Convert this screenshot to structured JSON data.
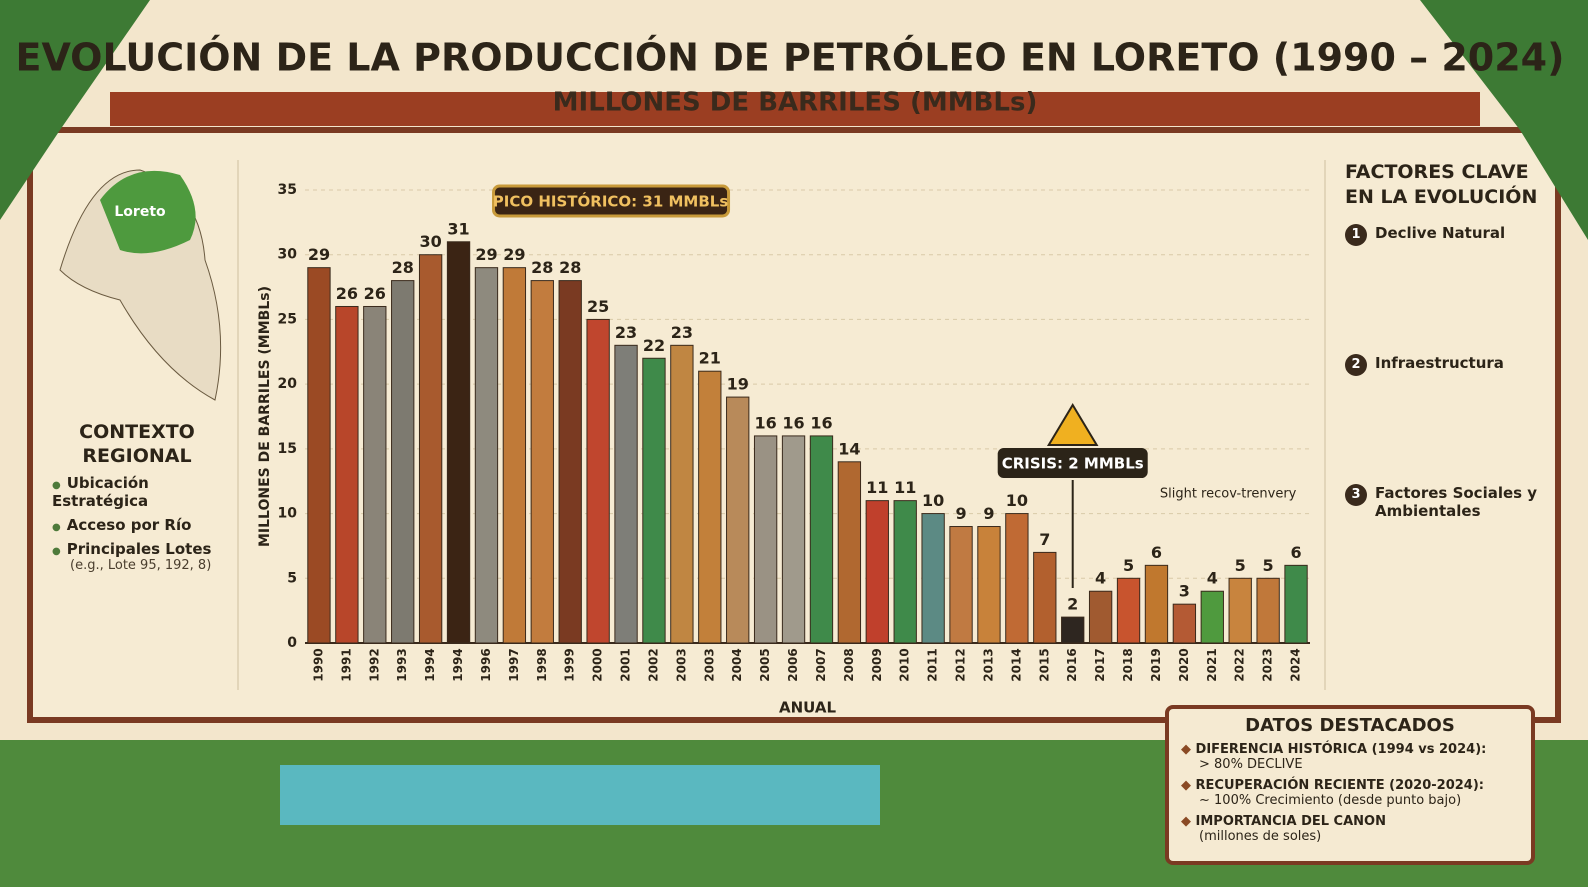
{
  "title": "EVOLUCIÓN DE LA PRODUCCIÓN DE PETRÓLEO EN LORETO (1990 – 2024)",
  "subtitle": "MILLONES DE BARRILES (MMBLs)",
  "left_panel": {
    "map_label": "Loreto",
    "title": "CONTEXTO REGIONAL",
    "items": [
      "Ubicación Estratégica",
      "Acceso por Río",
      "Principales Lotes"
    ],
    "note": "(e.g., Lote 95, 192, 8)"
  },
  "right_panel": {
    "title": "FACTORES CLAVE EN LA EVOLUCIÓN",
    "items": [
      {
        "number": "1",
        "text": "Declive Natural"
      },
      {
        "number": "2",
        "text": "Infraestructura"
      },
      {
        "number": "3",
        "text": "Factores Sociales y Ambientales"
      }
    ]
  },
  "highlights": {
    "title": "DATOS DESTACADOS",
    "items": [
      {
        "heading": "DIFERENCIA HISTÓRICA (1994 vs 2024):",
        "detail": "> 80% DECLIVE"
      },
      {
        "heading": "RECUPERACIÓN RECIENTE (2020-2024):",
        "detail": "~ 100% Crecimiento (desde punto bajo)"
      },
      {
        "heading": "IMPORTANCIA DEL CANON",
        "detail": "(millones de soles)"
      }
    ]
  },
  "chart_data": {
    "type": "bar",
    "y_label": "MILLONES DE BARRILES (MMBLs)",
    "x_label": "ANUAL",
    "categories": [
      "1990",
      "1991",
      "1992",
      "1993",
      "1994",
      "1994",
      "1996",
      "1997",
      "1998",
      "1999",
      "2000",
      "2001",
      "2002",
      "2003",
      "2003",
      "2004",
      "2005",
      "2006",
      "2007",
      "2008",
      "2009",
      "2010",
      "2011",
      "2012",
      "2013",
      "2014",
      "2015",
      "2016",
      "2017",
      "2018",
      "2019",
      "2020",
      "2021",
      "2022",
      "2023",
      "2024"
    ],
    "values": [
      29,
      26,
      26,
      28,
      30,
      31,
      29,
      29,
      28,
      28,
      25,
      23,
      22,
      23,
      21,
      19,
      16,
      16,
      16,
      14,
      11,
      11,
      10,
      9,
      9,
      10,
      7,
      2,
      4,
      5,
      6,
      3,
      4,
      5,
      5,
      6
    ],
    "colors": [
      "#9b4a24",
      "#b8462a",
      "#8a8478",
      "#7d7a70",
      "#a85a2e",
      "#3b2414",
      "#8e8a7e",
      "#c07a38",
      "#c27c3e",
      "#7a3a22",
      "#c0462e",
      "#7e7e78",
      "#3f8a4a",
      "#c08642",
      "#c2803a",
      "#b88a5a",
      "#9a9284",
      "#a09a8c",
      "#3f8a4a",
      "#b06830",
      "#c0402c",
      "#3f8a4a",
      "#5c8a84",
      "#c07a42",
      "#c8823a",
      "#c06a34",
      "#b2602e",
      "#2e2620",
      "#a05a30",
      "#c8542e",
      "#c0782e",
      "#b45a34",
      "#4f9a3e",
      "#c8843e",
      "#c0783a",
      "#3f8a4a"
    ],
    "ylim": [
      0,
      35
    ],
    "yticks": [
      0,
      5,
      10,
      15,
      20,
      25,
      30,
      35
    ],
    "grid": true,
    "annotations": [
      "PICO HISTÓRICO: 31 MMBLs",
      "CRISIS: 2 MMBLs",
      "Slight recov-trenvery"
    ]
  }
}
